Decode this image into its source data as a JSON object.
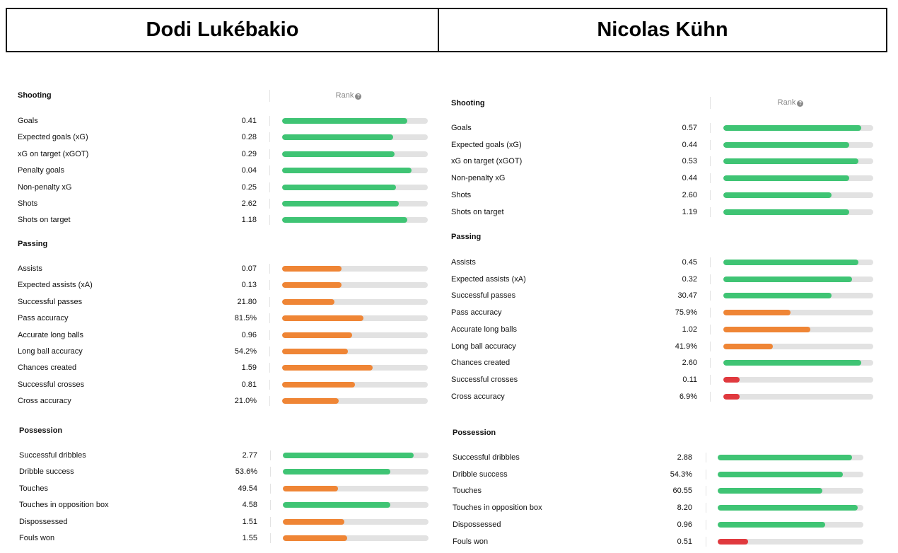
{
  "colors": {
    "green": "#3fc474",
    "orange": "#ef8535",
    "red": "#e0393e",
    "track": "#e2e2e2"
  },
  "players": [
    {
      "name": "Dodi Lukébakio"
    },
    {
      "name": "Nicolas Kühn"
    }
  ],
  "rank_label": "Rank",
  "left": {
    "sections": [
      {
        "title": "Shooting",
        "rows": [
          {
            "label": "Goals",
            "value": "0.41",
            "pct": 86,
            "color": "green"
          },
          {
            "label": "Expected goals (xG)",
            "value": "0.28",
            "pct": 76,
            "color": "green"
          },
          {
            "label": "xG on target (xGOT)",
            "value": "0.29",
            "pct": 77,
            "color": "green"
          },
          {
            "label": "Penalty goals",
            "value": "0.04",
            "pct": 89,
            "color": "green"
          },
          {
            "label": "Non-penalty xG",
            "value": "0.25",
            "pct": 78,
            "color": "green"
          },
          {
            "label": "Shots",
            "value": "2.62",
            "pct": 80,
            "color": "green"
          },
          {
            "label": "Shots on target",
            "value": "1.18",
            "pct": 86,
            "color": "green"
          }
        ]
      },
      {
        "title": "Passing",
        "rows": [
          {
            "label": "Assists",
            "value": "0.07",
            "pct": 41,
            "color": "orange"
          },
          {
            "label": "Expected assists (xA)",
            "value": "0.13",
            "pct": 41,
            "color": "orange"
          },
          {
            "label": "Successful passes",
            "value": "21.80",
            "pct": 36,
            "color": "orange"
          },
          {
            "label": "Pass accuracy",
            "value": "81.5%",
            "pct": 56,
            "color": "orange"
          },
          {
            "label": "Accurate long balls",
            "value": "0.96",
            "pct": 48,
            "color": "orange"
          },
          {
            "label": "Long ball accuracy",
            "value": "54.2%",
            "pct": 45,
            "color": "orange"
          },
          {
            "label": "Chances created",
            "value": "1.59",
            "pct": 62,
            "color": "orange"
          },
          {
            "label": "Successful crosses",
            "value": "0.81",
            "pct": 50,
            "color": "orange"
          },
          {
            "label": "Cross accuracy",
            "value": "21.0%",
            "pct": 39,
            "color": "orange"
          }
        ]
      },
      {
        "title": "Possession",
        "rows": [
          {
            "label": "Successful dribbles",
            "value": "2.77",
            "pct": 90,
            "color": "green"
          },
          {
            "label": "Dribble success",
            "value": "53.6%",
            "pct": 74,
            "color": "green"
          },
          {
            "label": "Touches",
            "value": "49.54",
            "pct": 38,
            "color": "orange"
          },
          {
            "label": "Touches in opposition box",
            "value": "4.58",
            "pct": 74,
            "color": "green"
          },
          {
            "label": "Dispossessed",
            "value": "1.51",
            "pct": 42,
            "color": "orange"
          },
          {
            "label": "Fouls won",
            "value": "1.55",
            "pct": 44,
            "color": "orange"
          }
        ]
      }
    ]
  },
  "right": {
    "sections": [
      {
        "title": "Shooting",
        "rows": [
          {
            "label": "Goals",
            "value": "0.57",
            "pct": 92,
            "color": "green"
          },
          {
            "label": "Expected goals (xG)",
            "value": "0.44",
            "pct": 84,
            "color": "green"
          },
          {
            "label": "xG on target (xGOT)",
            "value": "0.53",
            "pct": 90,
            "color": "green"
          },
          {
            "label": "Non-penalty xG",
            "value": "0.44",
            "pct": 84,
            "color": "green"
          },
          {
            "label": "Shots",
            "value": "2.60",
            "pct": 72,
            "color": "green"
          },
          {
            "label": "Shots on target",
            "value": "1.19",
            "pct": 84,
            "color": "green"
          }
        ]
      },
      {
        "title": "Passing",
        "rows": [
          {
            "label": "Assists",
            "value": "0.45",
            "pct": 90,
            "color": "green"
          },
          {
            "label": "Expected assists (xA)",
            "value": "0.32",
            "pct": 86,
            "color": "green"
          },
          {
            "label": "Successful passes",
            "value": "30.47",
            "pct": 72,
            "color": "green"
          },
          {
            "label": "Pass accuracy",
            "value": "75.9%",
            "pct": 45,
            "color": "orange"
          },
          {
            "label": "Accurate long balls",
            "value": "1.02",
            "pct": 58,
            "color": "orange"
          },
          {
            "label": "Long ball accuracy",
            "value": "41.9%",
            "pct": 33,
            "color": "orange"
          },
          {
            "label": "Chances created",
            "value": "2.60",
            "pct": 92,
            "color": "green"
          },
          {
            "label": "Successful crosses",
            "value": "0.11",
            "pct": 11,
            "color": "red"
          },
          {
            "label": "Cross accuracy",
            "value": "6.9%",
            "pct": 11,
            "color": "red"
          }
        ]
      },
      {
        "title": "Possession",
        "rows": [
          {
            "label": "Successful dribbles",
            "value": "2.88",
            "pct": 92,
            "color": "green"
          },
          {
            "label": "Dribble success",
            "value": "54.3%",
            "pct": 86,
            "color": "green"
          },
          {
            "label": "Touches",
            "value": "60.55",
            "pct": 72,
            "color": "green"
          },
          {
            "label": "Touches in opposition box",
            "value": "8.20",
            "pct": 96,
            "color": "green"
          },
          {
            "label": "Dispossessed",
            "value": "0.96",
            "pct": 74,
            "color": "green"
          },
          {
            "label": "Fouls won",
            "value": "0.51",
            "pct": 21,
            "color": "red"
          }
        ]
      }
    ]
  }
}
